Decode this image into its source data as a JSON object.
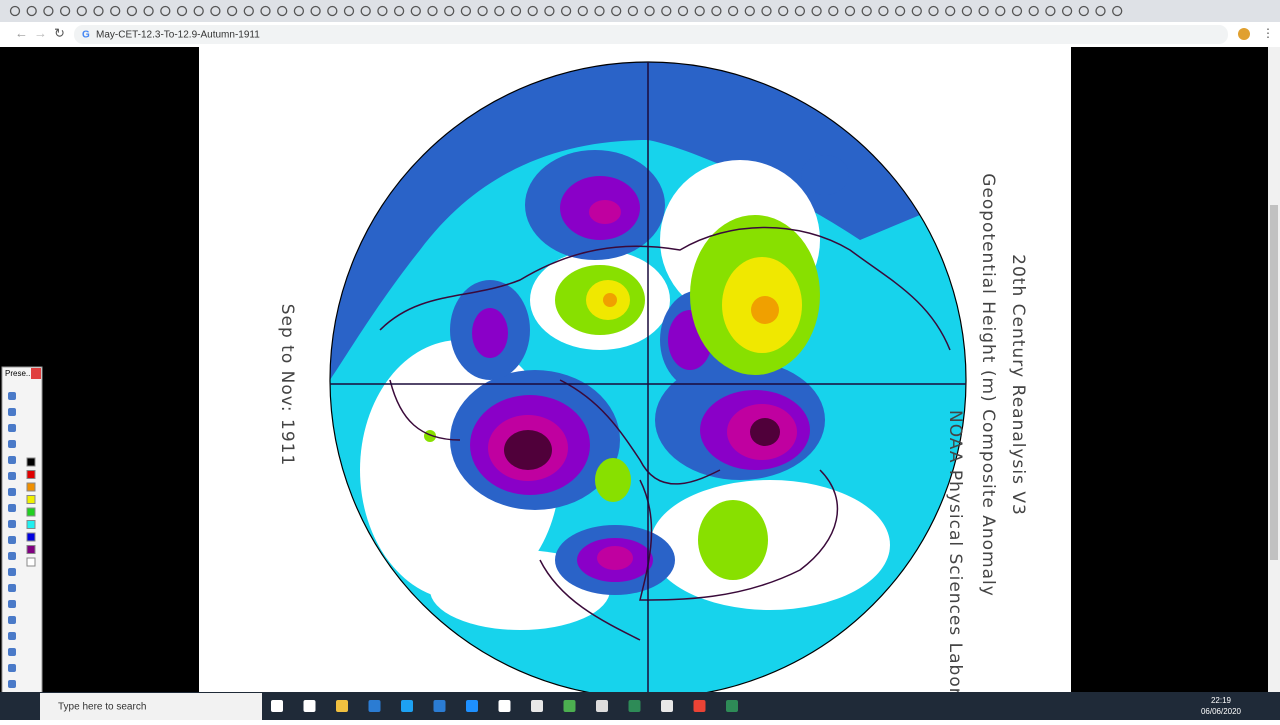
{
  "browser": {
    "address": "May-CET-12.3-To-12.9-Autumn-1911"
  },
  "map": {
    "title": "20th Century Reanalysis V3",
    "subtitle": "Geopotential Height (m) Composite Anomaly",
    "credit": "NOAA Physical Sciences Laborator",
    "period": "Sep to Nov: 1911"
  },
  "palette": {
    "title": "Prese..."
  },
  "taskbar": {
    "search": "Type here to search",
    "time": "22:19",
    "date": "06/06/2020"
  }
}
